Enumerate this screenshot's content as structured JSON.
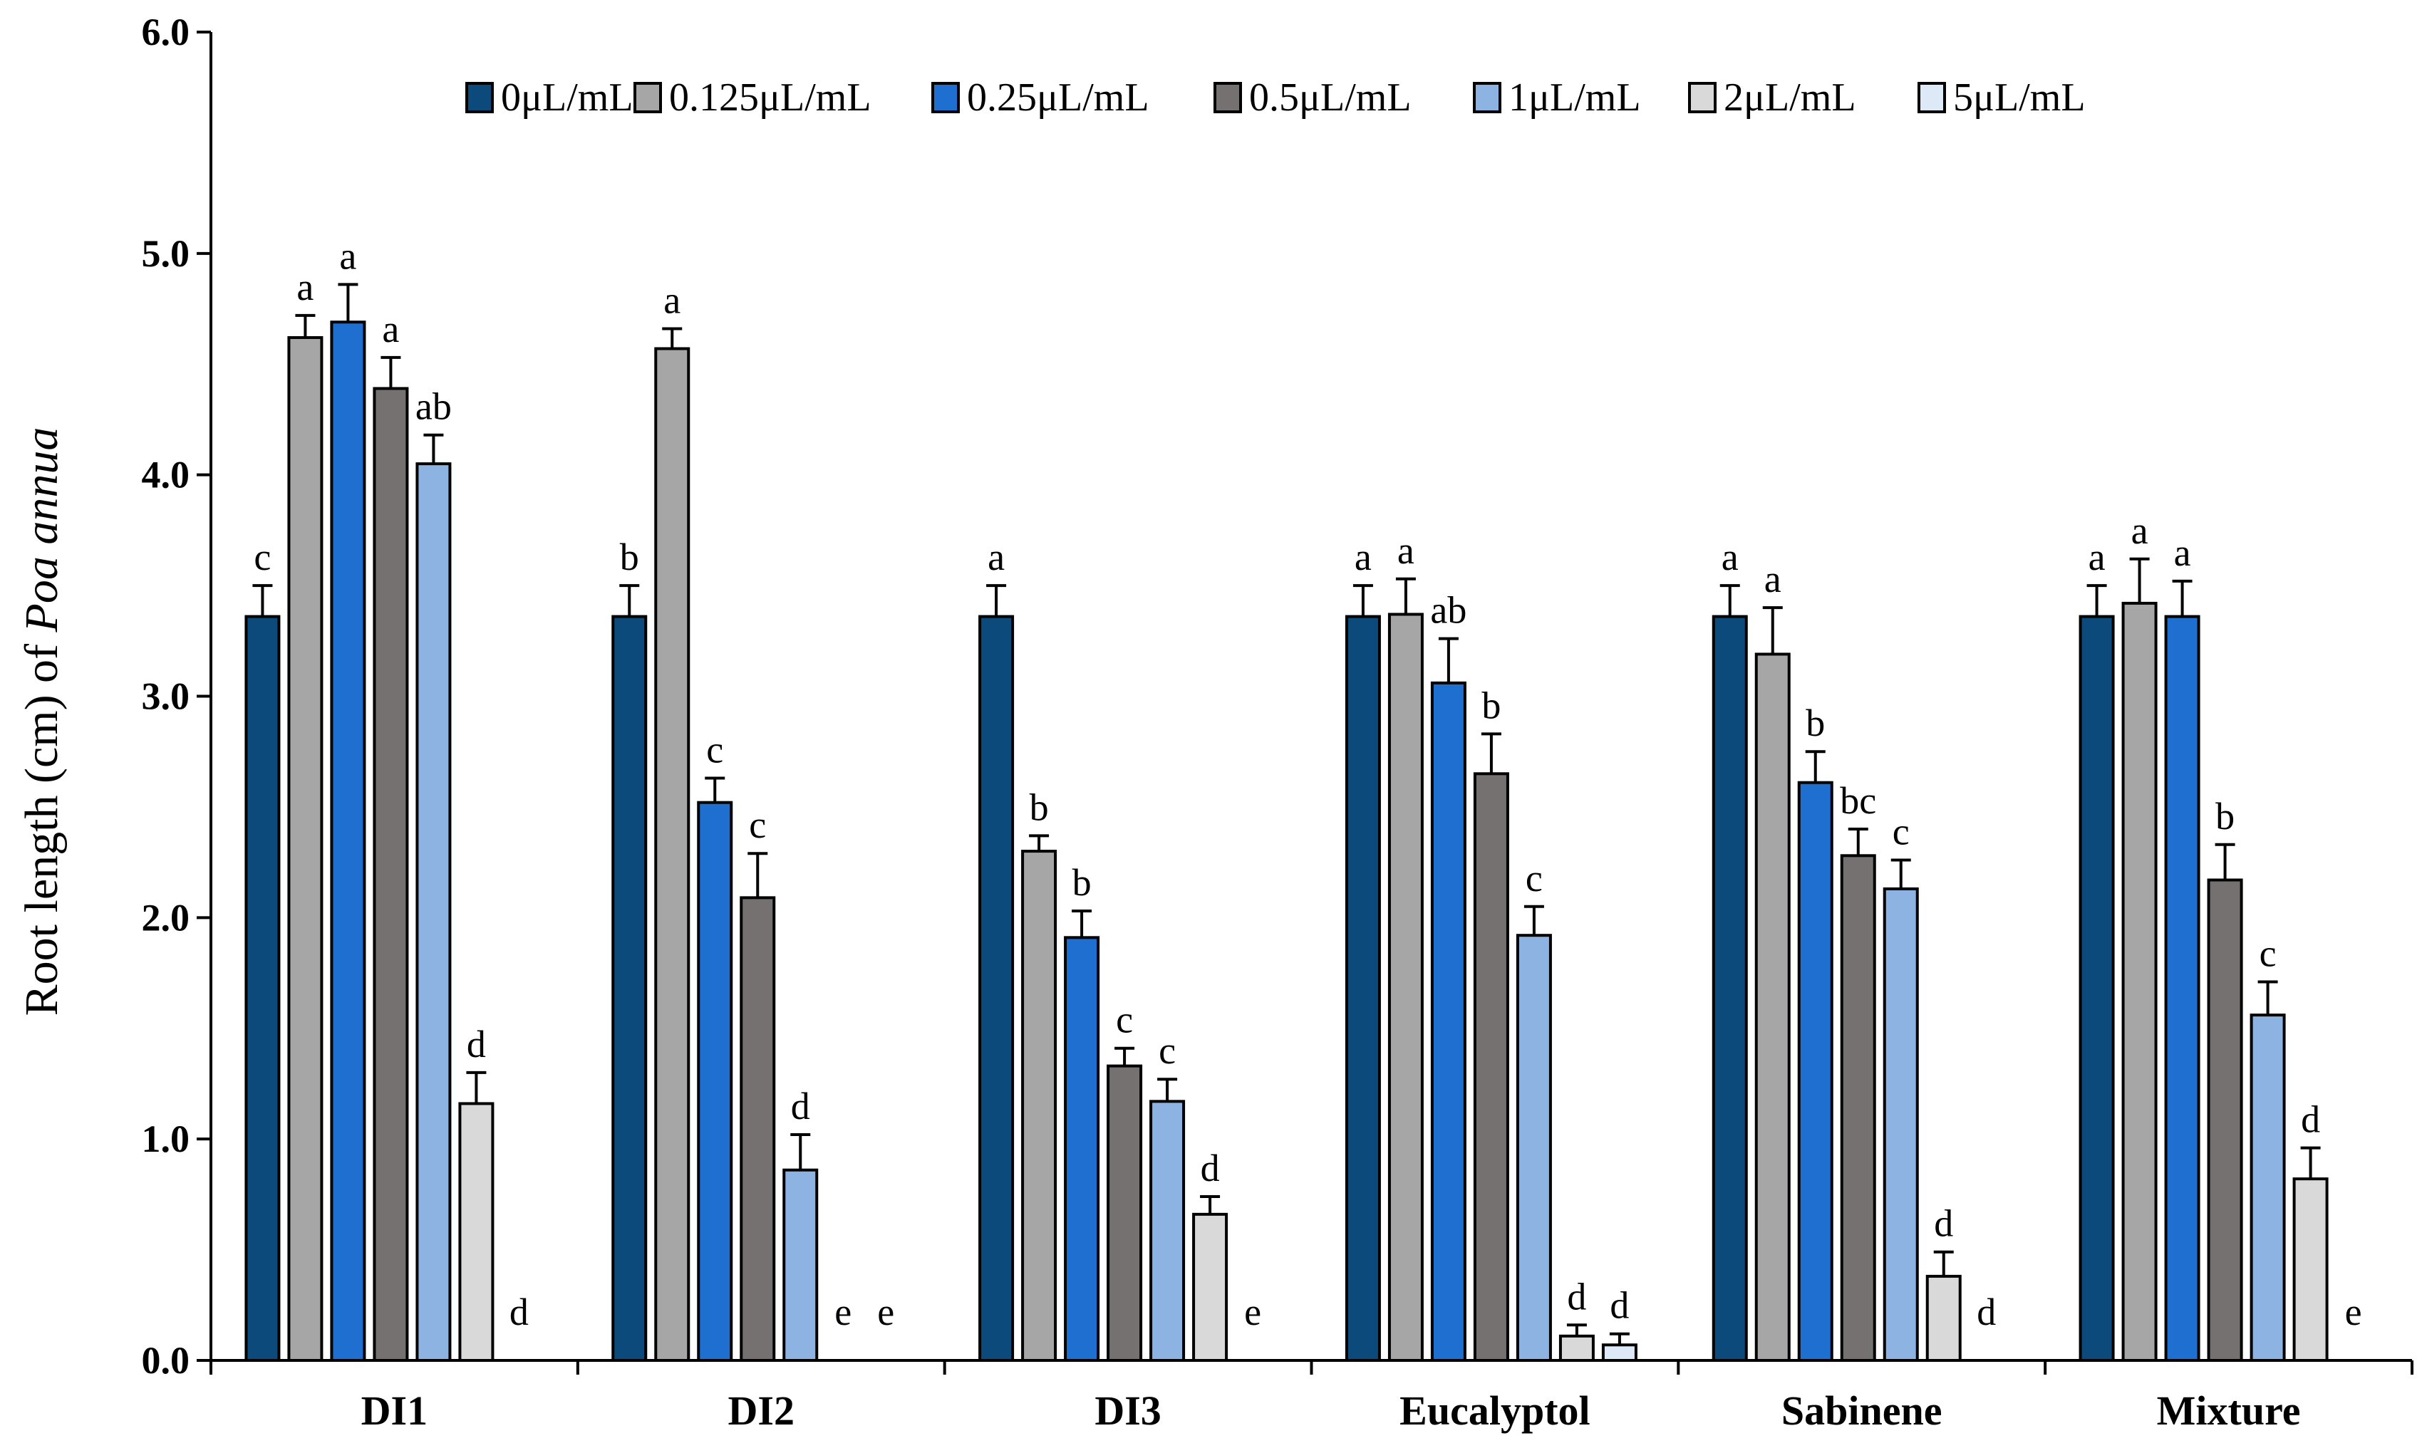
{
  "chart_data": {
    "type": "bar",
    "title": "",
    "xlabel": "",
    "ylabel_prefix": "Root length (cm) of ",
    "ylabel_species": "Poa annua",
    "ylim": [
      0,
      6
    ],
    "ytick_step": 1,
    "ytick_labels": [
      "0.0",
      "1.0",
      "2.0",
      "3.0",
      "4.0",
      "5.0",
      "6.0"
    ],
    "legend_position": "top-right",
    "categories": [
      "DI1",
      "DI2",
      "DI3",
      "Eucalyptol",
      "Sabinene",
      "Mixture"
    ],
    "series": [
      {
        "name": "0μL/mL",
        "color": "#0b4a7a",
        "values": [
          3.36,
          3.36,
          3.36,
          3.36,
          3.36,
          3.36
        ],
        "errors": [
          0.14,
          0.14,
          0.14,
          0.14,
          0.14,
          0.14
        ],
        "letters": [
          "c",
          "b",
          "a",
          "a",
          "a",
          "a"
        ]
      },
      {
        "name": "0.125μL/mL",
        "color": "#a6a6a6",
        "values": [
          4.62,
          4.57,
          2.3,
          3.37,
          3.19,
          3.42
        ],
        "errors": [
          0.1,
          0.09,
          0.07,
          0.16,
          0.21,
          0.2
        ],
        "letters": [
          "a",
          "a",
          "b",
          "a",
          "a",
          "a"
        ]
      },
      {
        "name": "0.25μL/mL",
        "color": "#1e6fcf",
        "values": [
          4.69,
          2.52,
          1.91,
          3.06,
          2.61,
          3.36
        ],
        "errors": [
          0.17,
          0.11,
          0.12,
          0.2,
          0.14,
          0.16
        ],
        "letters": [
          "a",
          "c",
          "b",
          "ab",
          "b",
          "a"
        ]
      },
      {
        "name": "0.5μL/mL",
        "color": "#767171",
        "values": [
          4.39,
          2.09,
          1.33,
          2.65,
          2.28,
          2.17
        ],
        "errors": [
          0.14,
          0.2,
          0.08,
          0.18,
          0.12,
          0.16
        ],
        "letters": [
          "a",
          "c",
          "c",
          "b",
          "bc",
          "b"
        ]
      },
      {
        "name": "1μL/mL",
        "color": "#8db3e2",
        "values": [
          4.05,
          0.86,
          1.17,
          1.92,
          2.13,
          1.56
        ],
        "errors": [
          0.13,
          0.16,
          0.1,
          0.13,
          0.13,
          0.15
        ],
        "letters": [
          "ab",
          "d",
          "c",
          "c",
          "c",
          "c"
        ]
      },
      {
        "name": "2μL/mL",
        "color": "#d9d9d9",
        "values": [
          1.16,
          0.0,
          0.66,
          0.11,
          0.38,
          0.82
        ],
        "errors": [
          0.14,
          0.0,
          0.08,
          0.05,
          0.11,
          0.14
        ],
        "letters": [
          "d",
          "e",
          "d",
          "d",
          "d",
          "d"
        ]
      },
      {
        "name": "5μL/mL",
        "color": "#dde9f7",
        "values": [
          0.0,
          0.0,
          0.0,
          0.07,
          0.0,
          0.0
        ],
        "errors": [
          0.0,
          0.0,
          0.0,
          0.05,
          0.0,
          0.0
        ],
        "letters": [
          "d",
          "e",
          "e",
          "d",
          "d",
          "e"
        ]
      }
    ]
  }
}
